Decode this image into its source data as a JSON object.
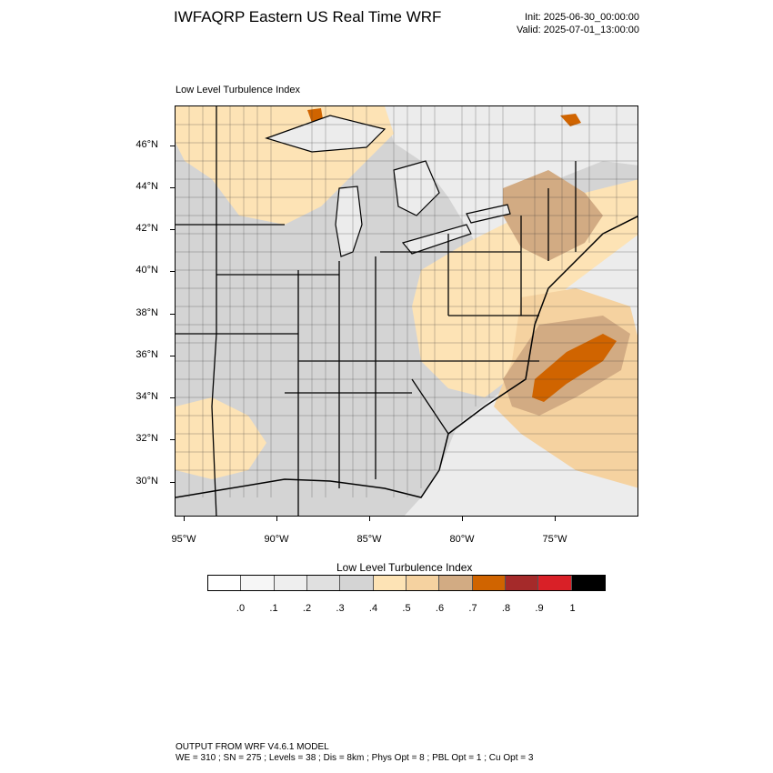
{
  "header": {
    "title": "IWFAQRP Eastern US Real Time WRF",
    "init": "Init: 2025-06-30_00:00:00",
    "valid": "Valid: 2025-07-01_13:00:00"
  },
  "map": {
    "subtitle": "Low Level Turbulence Index",
    "lat_labels": [
      "46°N",
      "44°N",
      "42°N",
      "40°N",
      "38°N",
      "36°N",
      "34°N",
      "32°N",
      "30°N"
    ],
    "lon_labels": [
      "95°W",
      "90°W",
      "85°W",
      "80°W",
      "75°W"
    ],
    "colors": {
      "ocean_light": "#e9e9e9",
      "land_light": "#d4d4d4",
      "low_peach": "#fde3b5",
      "mid_peach": "#f5d2a0",
      "tan": "#d2ab83",
      "orange": "#d06400",
      "border": "#000000",
      "county": "#333333"
    }
  },
  "colorbar": {
    "title": "Low Level Turbulence Index",
    "colors": [
      "#ffffff",
      "#f6f6f6",
      "#eeeeee",
      "#e0e0e0",
      "#d4d4d4",
      "#fde3b5",
      "#f5d2a0",
      "#d2ab83",
      "#d06400",
      "#a52a2a",
      "#d92027",
      "#000000"
    ],
    "labels": [
      ".0",
      ".1",
      ".2",
      ".3",
      ".4",
      ".5",
      ".6",
      ".7",
      ".8",
      ".9",
      "1"
    ]
  },
  "footer": {
    "line1": "OUTPUT FROM WRF V4.6.1 MODEL",
    "line2": "WE = 310 ; SN = 275 ; Levels = 38 ; Dis = 8km ; Phys Opt = 8 ; PBL Opt = 1 ; Cu Opt = 3"
  }
}
